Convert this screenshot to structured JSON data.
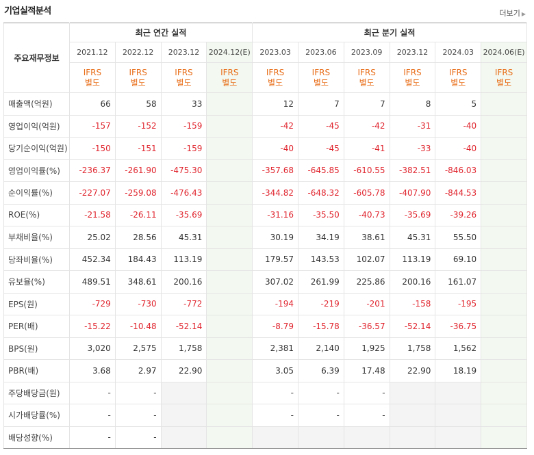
{
  "header": {
    "title": "기업실적분석",
    "more_label": "더보기"
  },
  "table": {
    "corner_label": "주요재무정보",
    "group_annual": "최근 연간 실적",
    "group_quarter": "최근 분기 실적",
    "periods": [
      "2021.12",
      "2022.12",
      "2023.12",
      "2024.12(E)",
      "2023.03",
      "2023.06",
      "2023.09",
      "2023.12",
      "2024.03",
      "2024.06(E)"
    ],
    "ifrs_line1": "IFRS",
    "ifrs_line2": "별도",
    "rows": [
      {
        "label": "매출액(억원)",
        "values": [
          "66",
          "58",
          "33",
          "",
          "12",
          "7",
          "7",
          "8",
          "5",
          ""
        ]
      },
      {
        "label": "영업이익(억원)",
        "values": [
          "-157",
          "-152",
          "-159",
          "",
          "-42",
          "-45",
          "-42",
          "-31",
          "-40",
          ""
        ]
      },
      {
        "label": "당기순이익(억원)",
        "values": [
          "-150",
          "-151",
          "-159",
          "",
          "-40",
          "-45",
          "-41",
          "-33",
          "-40",
          ""
        ]
      },
      {
        "label": "영업이익률(%)",
        "values": [
          "-236.37",
          "-261.90",
          "-475.30",
          "",
          "-357.68",
          "-645.85",
          "-610.55",
          "-382.51",
          "-846.03",
          ""
        ]
      },
      {
        "label": "순이익률(%)",
        "values": [
          "-227.07",
          "-259.08",
          "-476.43",
          "",
          "-344.82",
          "-648.32",
          "-605.78",
          "-407.90",
          "-844.53",
          ""
        ]
      },
      {
        "label": "ROE(%)",
        "values": [
          "-21.58",
          "-26.11",
          "-35.69",
          "",
          "-31.16",
          "-35.50",
          "-40.73",
          "-35.69",
          "-39.26",
          ""
        ]
      },
      {
        "label": "부채비율(%)",
        "values": [
          "25.02",
          "28.56",
          "45.31",
          "",
          "30.19",
          "34.19",
          "38.61",
          "45.31",
          "55.50",
          ""
        ]
      },
      {
        "label": "당좌비율(%)",
        "values": [
          "452.34",
          "184.43",
          "113.19",
          "",
          "179.57",
          "143.53",
          "102.07",
          "113.19",
          "69.10",
          ""
        ]
      },
      {
        "label": "유보율(%)",
        "values": [
          "489.51",
          "348.61",
          "200.16",
          "",
          "307.02",
          "261.99",
          "225.86",
          "200.16",
          "161.07",
          ""
        ]
      },
      {
        "label": "EPS(원)",
        "values": [
          "-729",
          "-730",
          "-772",
          "",
          "-194",
          "-219",
          "-201",
          "-158",
          "-195",
          ""
        ]
      },
      {
        "label": "PER(배)",
        "values": [
          "-15.22",
          "-10.48",
          "-52.14",
          "",
          "-8.79",
          "-15.78",
          "-36.57",
          "-52.14",
          "-36.75",
          ""
        ]
      },
      {
        "label": "BPS(원)",
        "values": [
          "3,020",
          "2,575",
          "1,758",
          "",
          "2,381",
          "2,140",
          "1,925",
          "1,758",
          "1,562",
          ""
        ]
      },
      {
        "label": "PBR(배)",
        "values": [
          "3.68",
          "2.97",
          "22.90",
          "",
          "3.05",
          "6.39",
          "17.48",
          "22.90",
          "18.19",
          ""
        ]
      },
      {
        "label": "주당배당금(원)",
        "values": [
          "-",
          "-",
          "",
          "",
          "-",
          "-",
          "-",
          "",
          "",
          ""
        ]
      },
      {
        "label": "시가배당률(%)",
        "values": [
          "-",
          "-",
          "",
          "",
          "-",
          "-",
          "-",
          "",
          "",
          ""
        ]
      },
      {
        "label": "배당성향(%)",
        "values": [
          "-",
          "-",
          "",
          "",
          "",
          "",
          "",
          "",
          "",
          ""
        ]
      }
    ]
  }
}
